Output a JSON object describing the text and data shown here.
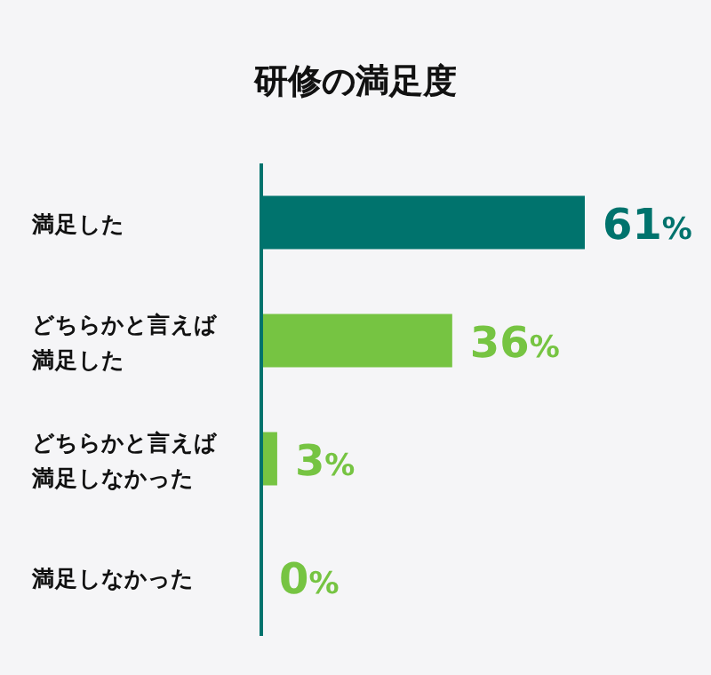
{
  "chart_data": {
    "type": "bar",
    "orientation": "horizontal",
    "title": "研修の満足度",
    "categories": [
      "満足した",
      "どちらかと言えば満足した",
      "どちらかと言えば満足しなかった",
      "満足しなかった"
    ],
    "values": [
      61,
      36,
      3,
      0
    ],
    "colors": [
      "#00736d",
      "#76c442",
      "#76c442",
      "#76c442"
    ],
    "value_labels": [
      "61%",
      "36%",
      "3%",
      "0%"
    ]
  }
}
